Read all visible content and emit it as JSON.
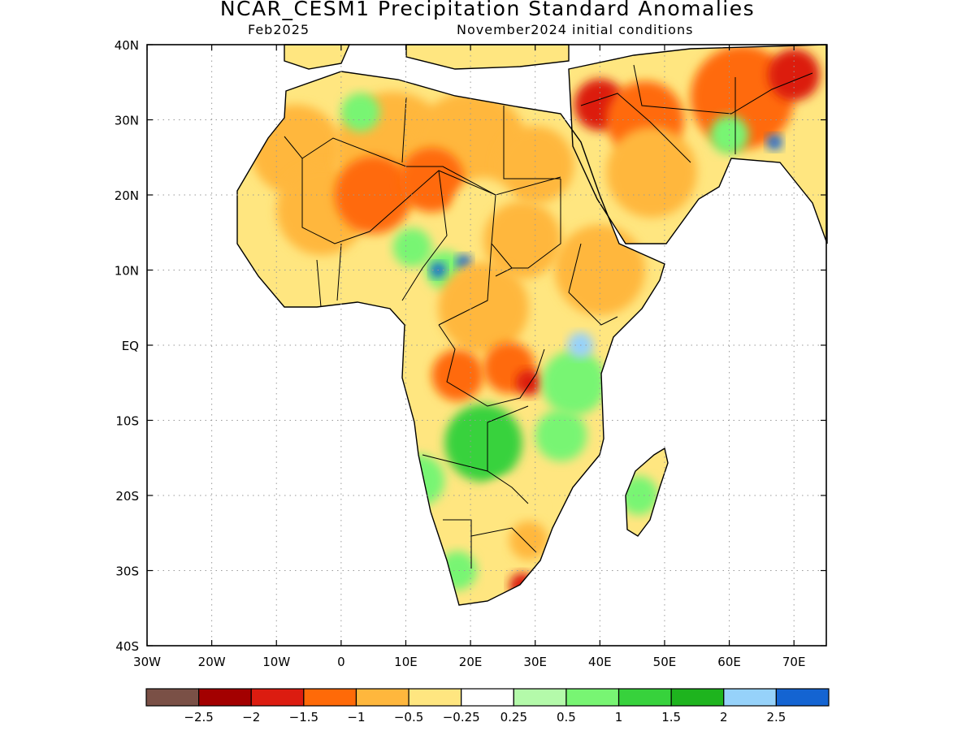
{
  "title": "NCAR_CESM1 Precipitation Standard Anomalies",
  "subtitle_left": "Feb2025",
  "subtitle_right": "November2024 initial conditions",
  "map": {
    "lon_range": [
      -30,
      75
    ],
    "lat_range": [
      -40,
      40
    ],
    "lon_ticks": [
      {
        "value": -30,
        "label": "30W"
      },
      {
        "value": -20,
        "label": "20W"
      },
      {
        "value": -10,
        "label": "10W"
      },
      {
        "value": 0,
        "label": "0"
      },
      {
        "value": 10,
        "label": "10E"
      },
      {
        "value": 20,
        "label": "20E"
      },
      {
        "value": 30,
        "label": "30E"
      },
      {
        "value": 40,
        "label": "40E"
      },
      {
        "value": 50,
        "label": "50E"
      },
      {
        "value": 60,
        "label": "60E"
      },
      {
        "value": 70,
        "label": "70E"
      }
    ],
    "lat_ticks": [
      {
        "value": 40,
        "label": "40N"
      },
      {
        "value": 30,
        "label": "30N"
      },
      {
        "value": 20,
        "label": "20N"
      },
      {
        "value": 10,
        "label": "10N"
      },
      {
        "value": 0,
        "label": "EQ"
      },
      {
        "value": -10,
        "label": "10S"
      },
      {
        "value": -20,
        "label": "20S"
      },
      {
        "value": -30,
        "label": "30S"
      },
      {
        "value": -40,
        "label": "40S"
      }
    ],
    "grid": "dotted"
  },
  "colorbar": {
    "colors": [
      "#7a5046",
      "#a30000",
      "#dc1c10",
      "#ff6a08",
      "#ffb73d",
      "#ffe680",
      "#ffffff",
      "#b4faaa",
      "#78f573",
      "#37d23c",
      "#1eb41e",
      "#96d2fa",
      "#1464d2"
    ],
    "labels": [
      "−2.5",
      "−2",
      "−1.5",
      "−1",
      "−0.5",
      "−0.25",
      "0.25",
      "0.5",
      "1",
      "1.5",
      "2",
      "2.5"
    ]
  },
  "anomalies": [
    {
      "lon": -7,
      "lat": 26,
      "r": 7,
      "level": 4
    },
    {
      "lon": -3,
      "lat": 18,
      "r": 7,
      "level": 4
    },
    {
      "lon": 8,
      "lat": 26,
      "r": 9,
      "level": 4
    },
    {
      "lon": 20,
      "lat": 26,
      "r": 9,
      "level": 4
    },
    {
      "lon": 30,
      "lat": 24,
      "r": 6,
      "level": 4
    },
    {
      "lon": 5,
      "lat": 20,
      "r": 6,
      "level": 3
    },
    {
      "lon": 14,
      "lat": 22,
      "r": 5,
      "level": 3
    },
    {
      "lon": 40,
      "lat": 32,
      "r": 4,
      "level": 2
    },
    {
      "lon": 47,
      "lat": 30,
      "r": 6,
      "level": 3
    },
    {
      "lon": 62,
      "lat": 33,
      "r": 8,
      "level": 3
    },
    {
      "lon": 70,
      "lat": 36,
      "r": 4,
      "level": 2
    },
    {
      "lon": 48,
      "lat": 23,
      "r": 7,
      "level": 4
    },
    {
      "lon": 3,
      "lat": 31,
      "r": 3,
      "level": 8
    },
    {
      "lon": 11,
      "lat": 13,
      "r": 3,
      "level": 8
    },
    {
      "lon": 16,
      "lat": 10,
      "r": 3,
      "level": 8
    },
    {
      "lon": 19,
      "lat": 11,
      "r": 1.2,
      "level": 12
    },
    {
      "lon": 15,
      "lat": 10,
      "r": 1.2,
      "level": 12
    },
    {
      "lon": 22,
      "lat": 18,
      "r": 5,
      "level": 5
    },
    {
      "lon": 28,
      "lat": 14,
      "r": 6,
      "level": 4
    },
    {
      "lon": 40,
      "lat": 10,
      "r": 7,
      "level": 4
    },
    {
      "lon": 22,
      "lat": 5,
      "r": 7,
      "level": 4
    },
    {
      "lon": 18,
      "lat": -4,
      "r": 4,
      "level": 3
    },
    {
      "lon": 26,
      "lat": -3,
      "r": 4,
      "level": 3
    },
    {
      "lon": 29,
      "lat": -5,
      "r": 2,
      "level": 2
    },
    {
      "lon": 36,
      "lat": -5,
      "r": 5,
      "level": 8
    },
    {
      "lon": 37,
      "lat": 0,
      "r": 2,
      "level": 11
    },
    {
      "lon": 22,
      "lat": -13,
      "r": 6,
      "level": 9
    },
    {
      "lon": 34,
      "lat": -12,
      "r": 4,
      "level": 8
    },
    {
      "lon": 46,
      "lat": -20,
      "r": 3,
      "level": 8
    },
    {
      "lon": 26,
      "lat": -22,
      "r": 5,
      "level": 5
    },
    {
      "lon": 18,
      "lat": -30,
      "r": 3,
      "level": 8
    },
    {
      "lon": 28,
      "lat": -32,
      "r": 2,
      "level": 2
    },
    {
      "lon": 29,
      "lat": -26,
      "r": 3,
      "level": 4
    },
    {
      "lon": 12,
      "lat": -18,
      "r": 4,
      "level": 8
    },
    {
      "lon": 60,
      "lat": 28,
      "r": 3,
      "level": 8
    },
    {
      "lon": 67,
      "lat": 27,
      "r": 1.2,
      "level": 12
    }
  ]
}
